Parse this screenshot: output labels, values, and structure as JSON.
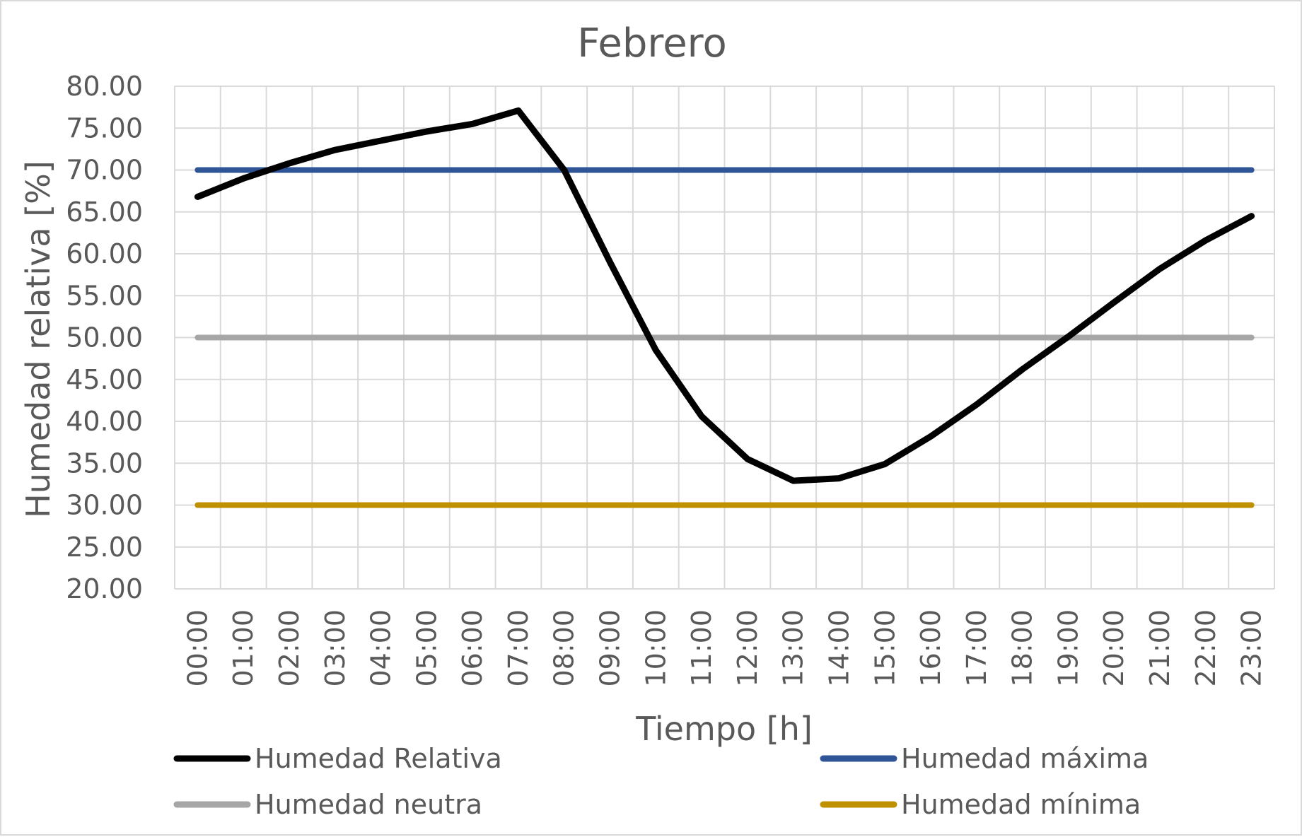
{
  "chart_data": {
    "type": "line",
    "title": "Febrero",
    "xlabel": "Tiempo [h]",
    "ylabel": "Humedad relativa [%]",
    "ylim": [
      20,
      80
    ],
    "yticks": [
      "20.00",
      "25.00",
      "30.00",
      "35.00",
      "40.00",
      "45.00",
      "50.00",
      "55.00",
      "60.00",
      "65.00",
      "70.00",
      "75.00",
      "80.00"
    ],
    "categories": [
      "00:00",
      "01:00",
      "02:00",
      "03:00",
      "04:00",
      "05:00",
      "06:00",
      "07:00",
      "08:00",
      "09:00",
      "10:00",
      "11:00",
      "12:00",
      "13:00",
      "14:00",
      "15:00",
      "16:00",
      "17:00",
      "18:00",
      "19:00",
      "20:00",
      "21:00",
      "22:00",
      "23:00"
    ],
    "grid": true,
    "legend_position": "bottom",
    "series": [
      {
        "name": "Humedad Relativa",
        "color": "#000000",
        "values": [
          66.8,
          69.0,
          70.8,
          72.4,
          73.5,
          74.6,
          75.5,
          77.1,
          70.0,
          59.0,
          48.5,
          40.6,
          35.5,
          32.9,
          33.2,
          34.9,
          38.2,
          42.0,
          46.2,
          50.1,
          54.2,
          58.2,
          61.6,
          64.5
        ]
      },
      {
        "name": "Humedad máxima",
        "color": "#2f5597",
        "values": [
          70,
          70,
          70,
          70,
          70,
          70,
          70,
          70,
          70,
          70,
          70,
          70,
          70,
          70,
          70,
          70,
          70,
          70,
          70,
          70,
          70,
          70,
          70,
          70
        ]
      },
      {
        "name": "Humedad neutra",
        "color": "#a6a6a6",
        "values": [
          50,
          50,
          50,
          50,
          50,
          50,
          50,
          50,
          50,
          50,
          50,
          50,
          50,
          50,
          50,
          50,
          50,
          50,
          50,
          50,
          50,
          50,
          50,
          50
        ]
      },
      {
        "name": "Humedad mínima",
        "color": "#bf9000",
        "values": [
          30,
          30,
          30,
          30,
          30,
          30,
          30,
          30,
          30,
          30,
          30,
          30,
          30,
          30,
          30,
          30,
          30,
          30,
          30,
          30,
          30,
          30,
          30,
          30
        ]
      }
    ]
  }
}
